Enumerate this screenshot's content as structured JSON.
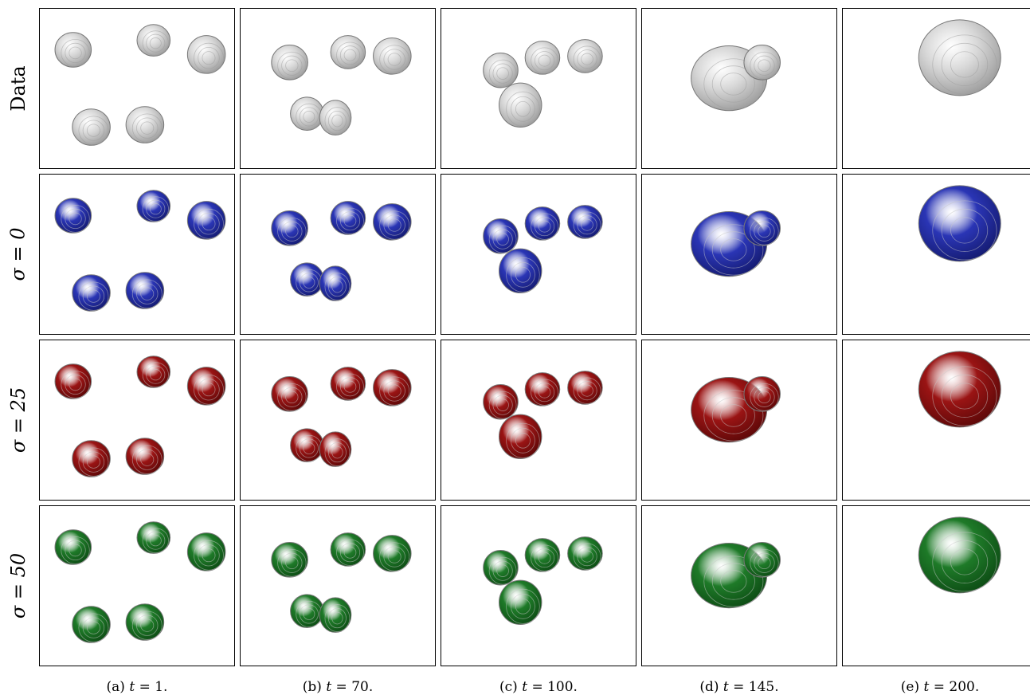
{
  "rows": [
    {
      "label": "Data",
      "math": false,
      "fill": "#d8d8d8",
      "shade": "#9a9a9a"
    },
    {
      "label": "σ = 0",
      "math": true,
      "fill": "#2a35b5",
      "shade": "#141a6e"
    },
    {
      "label": "σ = 25",
      "math": true,
      "fill": "#9a1414",
      "shade": "#5a0808"
    },
    {
      "label": "σ = 50",
      "math": true,
      "fill": "#1e7a28",
      "shade": "#0d4a14"
    }
  ],
  "columns": [
    {
      "caption_prefix": "(a) ",
      "caption_var": "t",
      "caption_eq": " = 1."
    },
    {
      "caption_prefix": "(b) ",
      "caption_var": "t",
      "caption_eq": " = 70."
    },
    {
      "caption_prefix": "(c) ",
      "caption_var": "t",
      "caption_eq": " = 100."
    },
    {
      "caption_prefix": "(d) ",
      "caption_var": "t",
      "caption_eq": " = 145."
    },
    {
      "caption_prefix": "(e) ",
      "caption_var": "t",
      "caption_eq": " = 200."
    }
  ]
}
